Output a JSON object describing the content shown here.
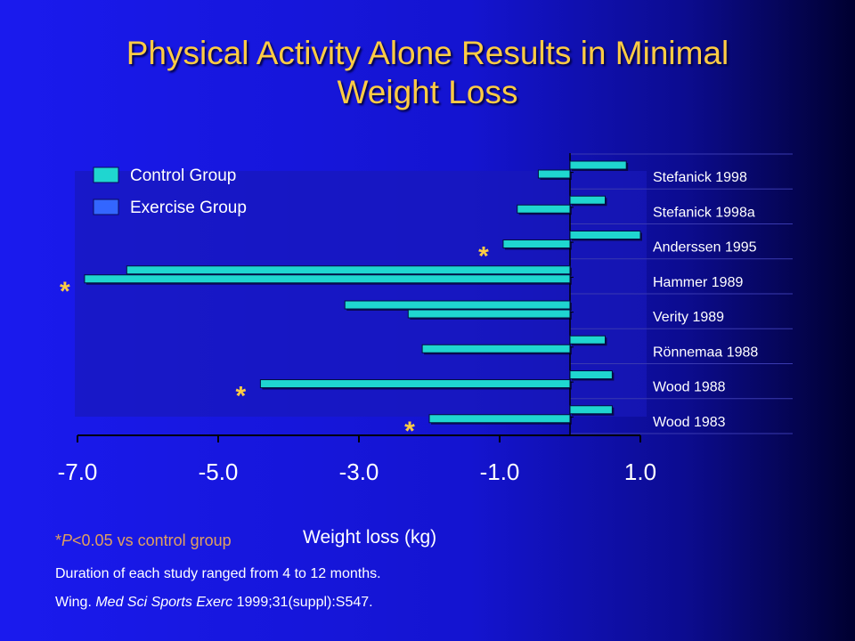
{
  "slide": {
    "title_line1": "Physical Activity Alone Results in Minimal",
    "title_line2": "Weight Loss",
    "footnote_sig_prefix": "*",
    "footnote_sig_p": "P",
    "footnote_sig_rest": "<0.05 vs control group",
    "duration_note": "Duration of each study ranged from 4 to 12 months.",
    "citation_author": "Wing. ",
    "citation_journal": "Med Sci Sports Exerc",
    "citation_rest": " 1999;31(suppl):S547."
  },
  "colors": {
    "title": "#ffcc44",
    "control": "#1fd6d0",
    "exercise": "#3366ff",
    "footnote": "#e0a060",
    "star": "#ffcc44"
  },
  "chart_data": {
    "type": "bar",
    "orientation": "horizontal",
    "xlabel": "Weight loss (kg)",
    "xlim": [
      -7.0,
      1.0
    ],
    "xticks": [
      "-7.0",
      "-5.0",
      "-3.0",
      "-1.0",
      "1.0"
    ],
    "legend_placement": "top-left",
    "categories": [
      "Stefanick 1998",
      "Stefanick 1998a",
      "Anderssen 1995",
      "Hammer 1989",
      "Verity 1989",
      "Rönnemaa 1988",
      "Wood 1988",
      "Wood 1983"
    ],
    "series": [
      {
        "name": "Control Group",
        "values": [
          0.8,
          0.5,
          1.0,
          -6.3,
          -3.2,
          0.5,
          0.6,
          0.6
        ]
      },
      {
        "name": "Exercise Group",
        "values": [
          -0.45,
          -0.75,
          -0.95,
          -6.9,
          -2.3,
          -2.1,
          -4.4,
          -2.0
        ]
      }
    ],
    "significant": [
      false,
      false,
      true,
      true,
      false,
      false,
      true,
      true
    ],
    "significance_marker": "*"
  }
}
